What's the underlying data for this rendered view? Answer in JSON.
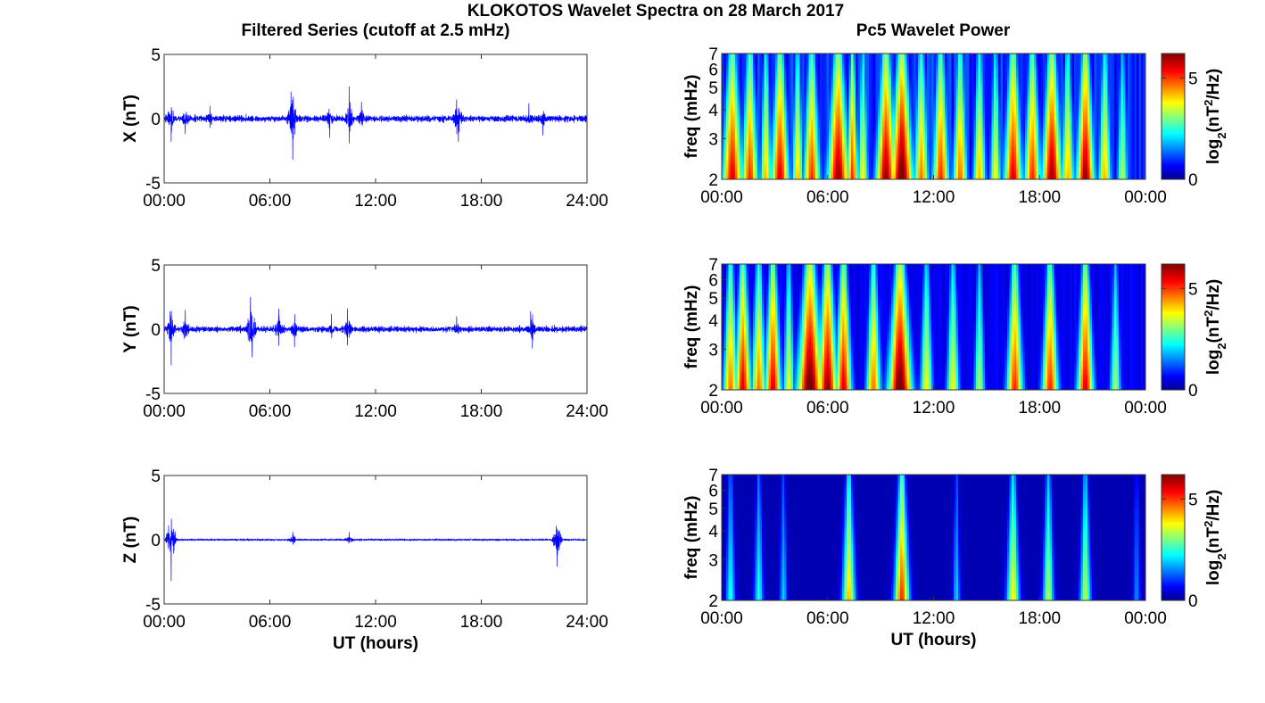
{
  "figure": {
    "title": "KLOKOTOS Wavelet Spectra on 28 March 2017",
    "left_title": "Filtered Series (cutoff at 2.5 mHz)",
    "right_title": "Pc5 Wavelet Power"
  },
  "colors": {
    "trace": "#0000ff",
    "frame": "#333333",
    "colormap": "jet"
  },
  "chart_data": [
    {
      "type": "line",
      "panel": "X",
      "ylabel": "X (nT)",
      "xlabel": "",
      "xticks": [
        "00:00",
        "06:00",
        "12:00",
        "18:00",
        "24:00"
      ],
      "xlim_hours": [
        0,
        24
      ],
      "yticks": [
        "5",
        "0",
        "-5"
      ],
      "ylim": [
        -5,
        5
      ],
      "base_amplitude": 0.5,
      "events": [
        {
          "t": 0.4,
          "a": -1.8
        },
        {
          "t": 1.2,
          "a": -1.2
        },
        {
          "t": 2.6,
          "a": 1.0
        },
        {
          "t": 7.2,
          "a": 2.1
        },
        {
          "t": 7.3,
          "a": -3.2
        },
        {
          "t": 9.4,
          "a": -1.5
        },
        {
          "t": 10.5,
          "a": 2.5
        },
        {
          "t": 11.2,
          "a": 1.3
        },
        {
          "t": 16.6,
          "a": 1.5
        },
        {
          "t": 16.7,
          "a": -1.8
        },
        {
          "t": 20.7,
          "a": 1.2
        },
        {
          "t": 21.5,
          "a": -1.3
        }
      ]
    },
    {
      "type": "line",
      "panel": "Y",
      "ylabel": "Y (nT)",
      "xlabel": "",
      "xticks": [
        "00:00",
        "06:00",
        "12:00",
        "18:00",
        "24:00"
      ],
      "xlim_hours": [
        0,
        24
      ],
      "yticks": [
        "5",
        "0",
        "-5"
      ],
      "ylim": [
        -5,
        5
      ],
      "base_amplitude": 0.45,
      "events": [
        {
          "t": 0.4,
          "a": -2.8
        },
        {
          "t": 1.2,
          "a": 1.5
        },
        {
          "t": 4.9,
          "a": 2.5
        },
        {
          "t": 5.0,
          "a": -2.2
        },
        {
          "t": 6.5,
          "a": 1.6
        },
        {
          "t": 7.4,
          "a": -1.4
        },
        {
          "t": 9.5,
          "a": 1.2
        },
        {
          "t": 10.4,
          "a": 1.6
        },
        {
          "t": 16.6,
          "a": 1.0
        },
        {
          "t": 20.8,
          "a": 1.4
        },
        {
          "t": 20.9,
          "a": -1.5
        }
      ]
    },
    {
      "type": "line",
      "panel": "Z",
      "ylabel": "Z (nT)",
      "xlabel": "UT (hours)",
      "xticks": [
        "00:00",
        "06:00",
        "12:00",
        "18:00",
        "24:00"
      ],
      "xlim_hours": [
        0,
        24
      ],
      "yticks": [
        "5",
        "0",
        "-5"
      ],
      "ylim": [
        -5,
        5
      ],
      "base_amplitude": 0.12,
      "events": [
        {
          "t": 0.4,
          "a": -3.2
        },
        {
          "t": 7.3,
          "a": 0.6
        },
        {
          "t": 10.5,
          "a": 0.6
        },
        {
          "t": 22.3,
          "a": -2.1
        }
      ]
    },
    {
      "type": "heatmap",
      "panel": "X-power",
      "ylabel": "freq (mHz)",
      "xlabel": "",
      "xticks": [
        "00:00",
        "06:00",
        "12:00",
        "18:00",
        "00:00"
      ],
      "xlim_hours": [
        0,
        24
      ],
      "yticks": [
        "7",
        "6",
        "5",
        "4",
        "3",
        "2"
      ],
      "ylim_mhz": [
        2,
        7
      ],
      "yscale": "log",
      "colorbar": {
        "label": "log2(nT2/Hz)",
        "ticks": [
          "5",
          "0"
        ],
        "range": [
          0,
          6.2
        ]
      },
      "background_level": 1.2,
      "blobs": [
        {
          "t": 0.6,
          "w": 0.55,
          "p": 6.0
        },
        {
          "t": 1.6,
          "w": 0.45,
          "p": 5.5
        },
        {
          "t": 2.5,
          "w": 0.3,
          "p": 4.5
        },
        {
          "t": 3.3,
          "w": 0.5,
          "p": 6.0
        },
        {
          "t": 4.3,
          "w": 0.3,
          "p": 4.5
        },
        {
          "t": 5.1,
          "w": 0.45,
          "p": 5.5
        },
        {
          "t": 6.6,
          "w": 0.6,
          "p": 6.5
        },
        {
          "t": 7.4,
          "w": 0.3,
          "p": 5.5
        },
        {
          "t": 8.0,
          "w": 0.3,
          "p": 4.0
        },
        {
          "t": 9.3,
          "w": 0.55,
          "p": 6.5
        },
        {
          "t": 10.2,
          "w": 0.6,
          "p": 7.0
        },
        {
          "t": 11.3,
          "w": 0.4,
          "p": 5.0
        },
        {
          "t": 12.4,
          "w": 0.45,
          "p": 5.5
        },
        {
          "t": 13.5,
          "w": 0.4,
          "p": 5.0
        },
        {
          "t": 14.6,
          "w": 0.35,
          "p": 4.5
        },
        {
          "t": 15.5,
          "w": 0.3,
          "p": 4.0
        },
        {
          "t": 16.5,
          "w": 0.5,
          "p": 6.0
        },
        {
          "t": 17.6,
          "w": 0.45,
          "p": 5.5
        },
        {
          "t": 18.7,
          "w": 0.55,
          "p": 6.5
        },
        {
          "t": 19.6,
          "w": 0.35,
          "p": 4.5
        },
        {
          "t": 20.6,
          "w": 0.5,
          "p": 6.5
        },
        {
          "t": 21.7,
          "w": 0.35,
          "p": 4.5
        },
        {
          "t": 22.7,
          "w": 0.3,
          "p": 3.5
        }
      ]
    },
    {
      "type": "heatmap",
      "panel": "Y-power",
      "ylabel": "freq (mHz)",
      "xlabel": "",
      "xticks": [
        "00:00",
        "06:00",
        "12:00",
        "18:00",
        "00:00"
      ],
      "xlim_hours": [
        0,
        24
      ],
      "yticks": [
        "7",
        "6",
        "5",
        "4",
        "3",
        "2"
      ],
      "ylim_mhz": [
        2,
        7
      ],
      "yscale": "log",
      "colorbar": {
        "label": "log2(nT2/Hz)",
        "ticks": [
          "5",
          "0"
        ],
        "range": [
          0,
          6.2
        ]
      },
      "background_level": 0.6,
      "blobs": [
        {
          "t": 0.5,
          "w": 0.4,
          "p": 5.0
        },
        {
          "t": 1.2,
          "w": 0.45,
          "p": 6.0
        },
        {
          "t": 2.1,
          "w": 0.4,
          "p": 5.0
        },
        {
          "t": 2.9,
          "w": 0.45,
          "p": 6.0
        },
        {
          "t": 3.8,
          "w": 0.3,
          "p": 4.0
        },
        {
          "t": 5.0,
          "w": 0.7,
          "p": 7.0
        },
        {
          "t": 6.0,
          "w": 0.55,
          "p": 6.5
        },
        {
          "t": 6.9,
          "w": 0.45,
          "p": 6.0
        },
        {
          "t": 8.6,
          "w": 0.4,
          "p": 5.0
        },
        {
          "t": 10.1,
          "w": 0.65,
          "p": 7.0
        },
        {
          "t": 11.6,
          "w": 0.35,
          "p": 4.0
        },
        {
          "t": 13.1,
          "w": 0.35,
          "p": 4.0
        },
        {
          "t": 14.6,
          "w": 0.3,
          "p": 3.5
        },
        {
          "t": 16.6,
          "w": 0.45,
          "p": 5.5
        },
        {
          "t": 18.6,
          "w": 0.45,
          "p": 5.5
        },
        {
          "t": 20.6,
          "w": 0.45,
          "p": 6.0
        },
        {
          "t": 22.3,
          "w": 0.3,
          "p": 3.5
        }
      ]
    },
    {
      "type": "heatmap",
      "panel": "Z-power",
      "ylabel": "freq (mHz)",
      "xlabel": "UT (hours)",
      "xticks": [
        "00:00",
        "06:00",
        "12:00",
        "18:00",
        "00:00"
      ],
      "xlim_hours": [
        0,
        24
      ],
      "yticks": [
        "7",
        "6",
        "5",
        "4",
        "3",
        "2"
      ],
      "ylim_mhz": [
        2,
        7
      ],
      "yscale": "log",
      "colorbar": {
        "label": "log2(nT2/Hz)",
        "ticks": [
          "5",
          "0"
        ],
        "range": [
          0,
          6.2
        ]
      },
      "background_level": 0.0,
      "blobs": [
        {
          "t": 0.5,
          "w": 0.25,
          "p": 2.5
        },
        {
          "t": 2.1,
          "w": 0.25,
          "p": 2.5
        },
        {
          "t": 3.5,
          "w": 0.2,
          "p": 2.0
        },
        {
          "t": 7.2,
          "w": 0.35,
          "p": 4.5
        },
        {
          "t": 10.2,
          "w": 0.4,
          "p": 5.5
        },
        {
          "t": 13.3,
          "w": 0.2,
          "p": 2.0
        },
        {
          "t": 16.5,
          "w": 0.35,
          "p": 4.0
        },
        {
          "t": 18.5,
          "w": 0.3,
          "p": 3.5
        },
        {
          "t": 20.6,
          "w": 0.3,
          "p": 3.5
        },
        {
          "t": 23.5,
          "w": 0.2,
          "p": 1.5
        }
      ]
    }
  ]
}
